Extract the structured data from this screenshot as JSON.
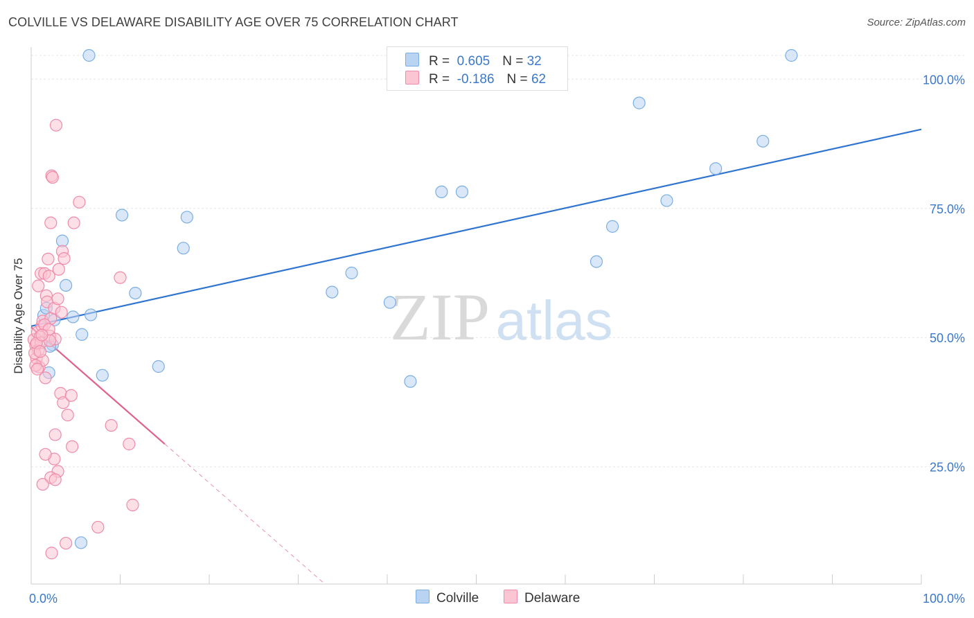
{
  "header": {
    "title": "COLVILLE VS DELAWARE DISABILITY AGE OVER 75 CORRELATION CHART",
    "source": "Source: ZipAtlas.com"
  },
  "watermark": {
    "zip": "ZIP",
    "atlas": "atlas"
  },
  "legend": {
    "colville": {
      "r_label": "R =",
      "r_value": "0.605",
      "n_label": "N =",
      "n_value": "32"
    },
    "delaware": {
      "r_label": "R =",
      "r_value": "-0.186",
      "n_label": "N =",
      "n_value": "62"
    }
  },
  "bottom_legend": {
    "colville": "Colville",
    "delaware": "Delaware"
  },
  "colors": {
    "colville_fill": "#b9d4f3",
    "colville_stroke": "#7aaee3",
    "colville_line": "#2f74d0",
    "delaware_fill": "#fbc5d3",
    "delaware_stroke": "#f08aa8",
    "delaware_line": "#e0628d",
    "axis_text": "#3b78c9",
    "grid": "#e6e6e6"
  },
  "chart_data": {
    "type": "scatter",
    "title": "COLVILLE VS DELAWARE DISABILITY AGE OVER 75 CORRELATION CHART",
    "xlabel": "",
    "ylabel": "Disability Age Over 75",
    "xlim": [
      0,
      100
    ],
    "ylim": [
      2.3,
      104.6
    ],
    "x_tick_labels": [
      "0.0%",
      "100.0%"
    ],
    "y_ticks": [
      25,
      50,
      75,
      100
    ],
    "y_tick_labels": [
      "25.0%",
      "50.0%",
      "75.0%",
      "100.0%"
    ],
    "grid": true,
    "series": [
      {
        "name": "Colville",
        "r": 0.605,
        "n": 32,
        "trend": {
          "x": [
            0,
            100
          ],
          "y": [
            52.2,
            90.3
          ],
          "solid_until": 100
        },
        "points": [
          {
            "x": 1.4,
            "y": 54.3
          },
          {
            "x": 2.0,
            "y": 43.2
          },
          {
            "x": 2.4,
            "y": 48.6
          },
          {
            "x": 1.7,
            "y": 55.7
          },
          {
            "x": 2.6,
            "y": 53.4
          },
          {
            "x": 3.5,
            "y": 68.7
          },
          {
            "x": 3.9,
            "y": 60.1
          },
          {
            "x": 4.7,
            "y": 54.0
          },
          {
            "x": 5.7,
            "y": 50.6
          },
          {
            "x": 6.5,
            "y": 104.6
          },
          {
            "x": 6.7,
            "y": 54.4
          },
          {
            "x": 8.0,
            "y": 42.7
          },
          {
            "x": 10.2,
            "y": 73.7
          },
          {
            "x": 11.7,
            "y": 58.6
          },
          {
            "x": 14.3,
            "y": 44.4
          },
          {
            "x": 17.1,
            "y": 67.3
          },
          {
            "x": 17.5,
            "y": 73.3
          },
          {
            "x": 33.8,
            "y": 58.8
          },
          {
            "x": 36.0,
            "y": 62.5
          },
          {
            "x": 40.3,
            "y": 56.8
          },
          {
            "x": 42.6,
            "y": 41.5
          },
          {
            "x": 46.1,
            "y": 78.2
          },
          {
            "x": 48.4,
            "y": 78.2
          },
          {
            "x": 63.5,
            "y": 64.7
          },
          {
            "x": 65.3,
            "y": 71.5
          },
          {
            "x": 68.3,
            "y": 95.4
          },
          {
            "x": 71.4,
            "y": 76.5
          },
          {
            "x": 76.9,
            "y": 82.7
          },
          {
            "x": 82.2,
            "y": 88.0
          },
          {
            "x": 85.4,
            "y": 104.6
          },
          {
            "x": 5.6,
            "y": 10.3
          },
          {
            "x": 2.1,
            "y": 48.3
          }
        ]
      },
      {
        "name": "Delaware",
        "r": -0.186,
        "n": 62,
        "trend": {
          "x": [
            0,
            100
          ],
          "y": [
            52.0,
            -98.6
          ],
          "solid_until": 15.0
        },
        "points": [
          {
            "x": 0.3,
            "y": 49.6
          },
          {
            "x": 0.5,
            "y": 48.5
          },
          {
            "x": 0.6,
            "y": 46.0
          },
          {
            "x": 0.7,
            "y": 51.0
          },
          {
            "x": 0.8,
            "y": 47.5
          },
          {
            "x": 0.9,
            "y": 44.3
          },
          {
            "x": 1.0,
            "y": 50.2
          },
          {
            "x": 1.1,
            "y": 49.0
          },
          {
            "x": 1.2,
            "y": 52.3
          },
          {
            "x": 1.3,
            "y": 45.6
          },
          {
            "x": 0.4,
            "y": 47.0
          },
          {
            "x": 0.6,
            "y": 48.9
          },
          {
            "x": 0.8,
            "y": 60.0
          },
          {
            "x": 1.1,
            "y": 62.4
          },
          {
            "x": 1.3,
            "y": 53.2
          },
          {
            "x": 1.5,
            "y": 62.4
          },
          {
            "x": 1.7,
            "y": 58.1
          },
          {
            "x": 1.8,
            "y": 56.9
          },
          {
            "x": 1.9,
            "y": 65.2
          },
          {
            "x": 2.0,
            "y": 61.9
          },
          {
            "x": 2.1,
            "y": 50.3
          },
          {
            "x": 2.2,
            "y": 53.7
          },
          {
            "x": 2.2,
            "y": 72.2
          },
          {
            "x": 2.3,
            "y": 81.3
          },
          {
            "x": 2.4,
            "y": 81.0
          },
          {
            "x": 2.6,
            "y": 55.7
          },
          {
            "x": 2.7,
            "y": 49.7
          },
          {
            "x": 2.8,
            "y": 91.1
          },
          {
            "x": 3.0,
            "y": 57.5
          },
          {
            "x": 3.1,
            "y": 63.2
          },
          {
            "x": 3.3,
            "y": 39.2
          },
          {
            "x": 3.4,
            "y": 54.9
          },
          {
            "x": 3.5,
            "y": 66.7
          },
          {
            "x": 3.7,
            "y": 65.3
          },
          {
            "x": 3.6,
            "y": 37.4
          },
          {
            "x": 4.5,
            "y": 38.8
          },
          {
            "x": 4.8,
            "y": 72.2
          },
          {
            "x": 5.4,
            "y": 76.2
          },
          {
            "x": 1.5,
            "y": 52.5
          },
          {
            "x": 1.6,
            "y": 42.2
          },
          {
            "x": 2.0,
            "y": 51.6
          },
          {
            "x": 2.1,
            "y": 49.4
          },
          {
            "x": 2.7,
            "y": 31.2
          },
          {
            "x": 2.6,
            "y": 26.5
          },
          {
            "x": 3.0,
            "y": 24.1
          },
          {
            "x": 1.6,
            "y": 27.4
          },
          {
            "x": 2.2,
            "y": 22.9
          },
          {
            "x": 2.7,
            "y": 22.5
          },
          {
            "x": 4.1,
            "y": 35.0
          },
          {
            "x": 4.6,
            "y": 28.9
          },
          {
            "x": 1.3,
            "y": 21.6
          },
          {
            "x": 3.9,
            "y": 10.2
          },
          {
            "x": 7.5,
            "y": 13.3
          },
          {
            "x": 2.3,
            "y": 8.3
          },
          {
            "x": 9.0,
            "y": 33.0
          },
          {
            "x": 11.0,
            "y": 29.4
          },
          {
            "x": 11.4,
            "y": 17.6
          },
          {
            "x": 10.0,
            "y": 61.6
          },
          {
            "x": 0.5,
            "y": 44.6
          },
          {
            "x": 1.0,
            "y": 47.3
          },
          {
            "x": 1.2,
            "y": 50.5
          },
          {
            "x": 0.7,
            "y": 43.9
          }
        ]
      }
    ]
  }
}
